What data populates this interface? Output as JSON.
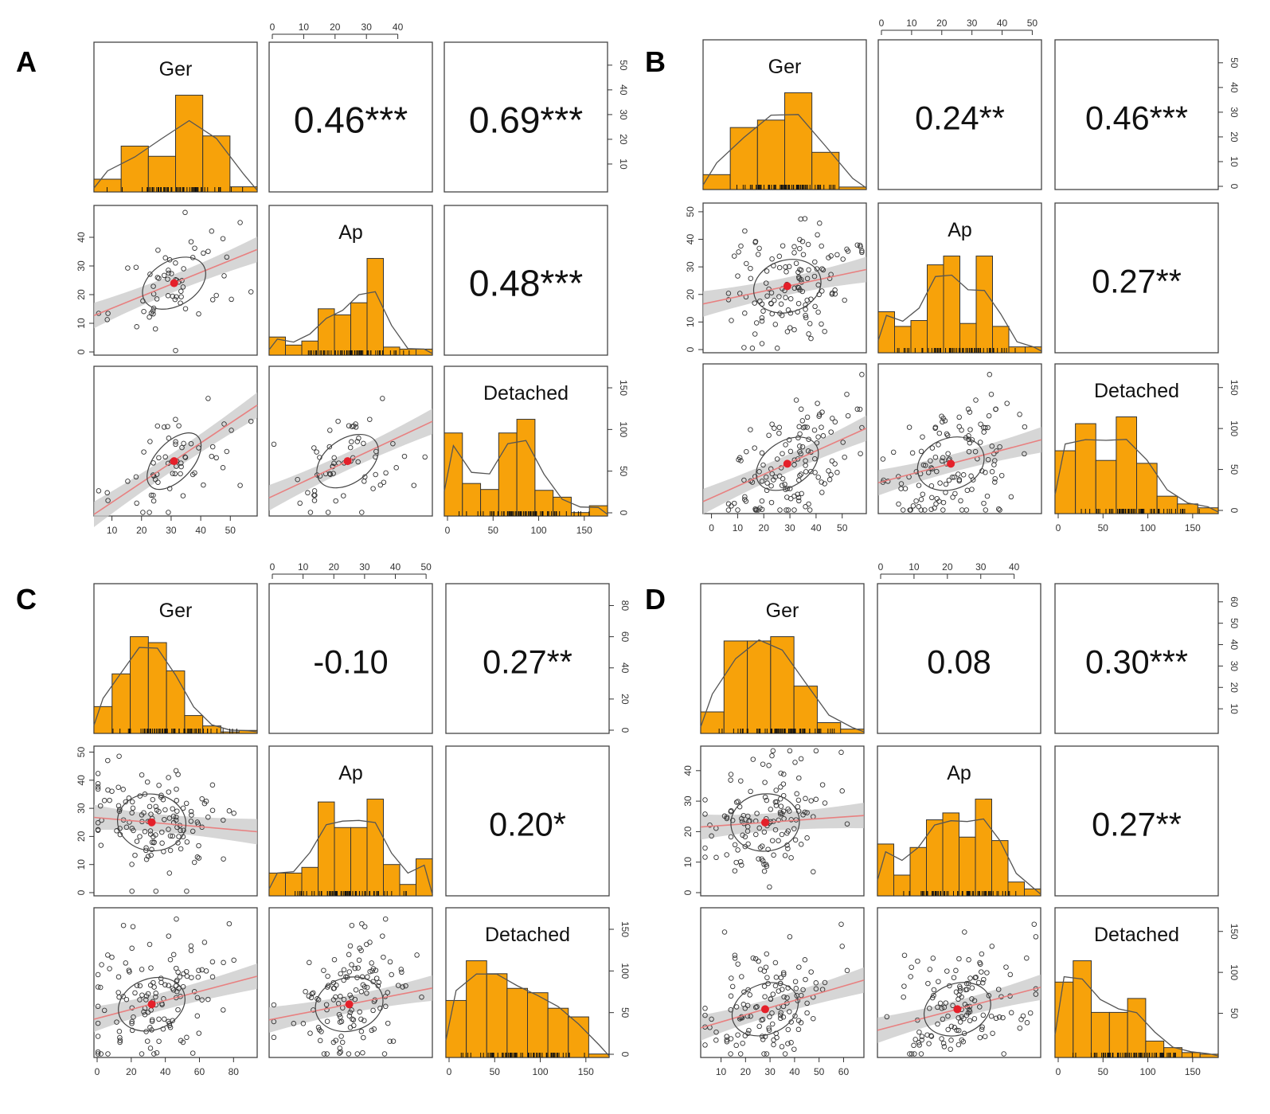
{
  "chart_data": [
    {
      "type": "scatter-matrix",
      "panel_label": "A",
      "variables": [
        "Ger",
        "Ap",
        "Detached"
      ],
      "ranges": {
        "Ger": [
          5,
          58
        ],
        "Ap": [
          0,
          50
        ],
        "Detached": [
          0,
          172
        ]
      },
      "top_axis": {
        "ticks": [
          "0",
          "10",
          "20",
          "30",
          "40"
        ],
        "values": [
          0,
          10,
          20,
          30,
          40
        ]
      },
      "bottom_axis": [
        {
          "ticks": [
            "10",
            "20",
            "30",
            "40",
            "50"
          ],
          "values": [
            10,
            20,
            30,
            40,
            50
          ]
        },
        {
          "ticks": [],
          "values": []
        },
        {
          "ticks": [
            "0",
            "50",
            "100",
            "150"
          ],
          "values": [
            0,
            50,
            100,
            150
          ]
        }
      ],
      "left_axis": {
        "ticks": [
          "0",
          "10",
          "20",
          "30",
          "40"
        ],
        "values": [
          0,
          10,
          20,
          30,
          40
        ]
      },
      "right_axis_top": {
        "ticks": [
          "10",
          "20",
          "30",
          "40",
          "50"
        ],
        "values": [
          10,
          20,
          30,
          40,
          50
        ],
        "max": 58
      },
      "right_axis_bottom": {
        "ticks": [
          "0",
          "50",
          "100",
          "150"
        ],
        "values": [
          0,
          50,
          100,
          150
        ]
      },
      "correlations": {
        "Ger-Ap": "0.46***",
        "Ger-Detached": "0.69***",
        "Ap-Detached": "0.48***"
      },
      "correlation_values": {
        "Ger-Ap": 0.46,
        "Ger-Detached": 0.69,
        "Ap-Detached": 0.48
      },
      "histograms": {
        "Ger": [
          5,
          18,
          14,
          38,
          22,
          2
        ],
        "Ap": [
          9,
          5,
          7,
          23,
          20,
          26,
          48,
          4,
          3,
          3
        ],
        "Detached": [
          97,
          38,
          31,
          97,
          113,
          30,
          22,
          4,
          12
        ]
      },
      "means": {
        "Ger": 31,
        "Ap": 24,
        "Detached": 62
      },
      "n": 60
    },
    {
      "type": "scatter-matrix",
      "panel_label": "B",
      "variables": [
        "Ger",
        "Ap",
        "Detached"
      ],
      "ranges": {
        "Ger": [
          -2,
          58
        ],
        "Ap": [
          0,
          52
        ],
        "Detached": [
          0,
          175
        ]
      },
      "top_axis": {
        "ticks": [
          "0",
          "10",
          "20",
          "30",
          "40",
          "50"
        ],
        "values": [
          0,
          10,
          20,
          30,
          40,
          50
        ]
      },
      "bottom_axis": [
        {
          "ticks": [
            "0",
            "10",
            "20",
            "30",
            "40",
            "50"
          ],
          "values": [
            0,
            10,
            20,
            30,
            40,
            50
          ]
        },
        {
          "ticks": [],
          "values": []
        },
        {
          "ticks": [
            "0",
            "50",
            "100",
            "150"
          ],
          "values": [
            0,
            50,
            100,
            150
          ]
        }
      ],
      "left_axis": {
        "ticks": [
          "0",
          "10",
          "20",
          "30",
          "40",
          "50"
        ],
        "values": [
          0,
          10,
          20,
          30,
          40,
          50
        ]
      },
      "right_axis_top": {
        "ticks": [
          "0",
          "10",
          "20",
          "30",
          "40",
          "50"
        ],
        "values": [
          0,
          10,
          20,
          30,
          40,
          50
        ],
        "max": 58
      },
      "right_axis_bottom": {
        "ticks": [
          "0",
          "50",
          "100",
          "150"
        ],
        "values": [
          0,
          50,
          100,
          150
        ]
      },
      "correlations": {
        "Ger-Ap": "0.24**",
        "Ger-Detached": "0.46***",
        "Ap-Detached": "0.27**"
      },
      "correlation_values": {
        "Ger-Ap": 0.24,
        "Ger-Detached": 0.46,
        "Ap-Detached": 0.27
      },
      "histograms": {
        "Ger": [
          6,
          25,
          28,
          39,
          15,
          1
        ],
        "Ap": [
          14,
          9,
          11,
          30,
          33,
          10,
          33,
          9,
          2,
          2
        ],
        "Detached": [
          65,
          93,
          55,
          100,
          52,
          18,
          10,
          6
        ]
      },
      "means": {
        "Ger": 29,
        "Ap": 23,
        "Detached": 57
      },
      "n": 130
    },
    {
      "type": "scatter-matrix",
      "panel_label": "C",
      "variables": [
        "Ger",
        "Ap",
        "Detached"
      ],
      "ranges": {
        "Ger": [
          0,
          92
        ],
        "Ap": [
          0,
          51
        ],
        "Detached": [
          0,
          172
        ]
      },
      "top_axis": {
        "ticks": [
          "0",
          "10",
          "20",
          "30",
          "40",
          "50"
        ],
        "values": [
          0,
          10,
          20,
          30,
          40,
          50
        ]
      },
      "bottom_axis": [
        {
          "ticks": [
            "0",
            "20",
            "40",
            "60",
            "80"
          ],
          "values": [
            0,
            20,
            40,
            60,
            80
          ]
        },
        {
          "ticks": [],
          "values": []
        },
        {
          "ticks": [
            "0",
            "50",
            "100",
            "150"
          ],
          "values": [
            0,
            50,
            100,
            150
          ]
        }
      ],
      "left_axis": {
        "ticks": [
          "0",
          "10",
          "20",
          "30",
          "40",
          "50"
        ],
        "values": [
          0,
          10,
          20,
          30,
          40,
          50
        ]
      },
      "right_axis_top": {
        "ticks": [
          "0",
          "20",
          "40",
          "60",
          "80"
        ],
        "values": [
          0,
          20,
          40,
          60,
          80
        ],
        "max": 92
      },
      "right_axis_bottom": {
        "ticks": [
          "0",
          "50",
          "100",
          "150"
        ],
        "values": [
          0,
          50,
          100,
          150
        ]
      },
      "correlations": {
        "Ger-Ap": "-0.10",
        "Ger-Detached": "0.27**",
        "Ap-Detached": "0.20*"
      },
      "correlation_values": {
        "Ger-Ap": -0.1,
        "Ger-Detached": 0.27,
        "Ap-Detached": 0.2
      },
      "histograms": {
        "Ger": [
          18,
          40,
          65,
          61,
          42,
          12,
          5,
          1,
          2
        ],
        "Ap": [
          8,
          8,
          10,
          33,
          24,
          24,
          34,
          11,
          4,
          13
        ],
        "Detached": [
          66,
          112,
          97,
          80,
          75,
          57,
          47,
          4
        ]
      },
      "means": {
        "Ger": 32,
        "Ap": 25,
        "Detached": 60
      },
      "n": 130
    },
    {
      "type": "scatter-matrix",
      "panel_label": "D",
      "variables": [
        "Ger",
        "Ap",
        "Detached"
      ],
      "ranges": {
        "Ger": [
          3,
          67
        ],
        "Ap": [
          0,
          47
        ],
        "Detached": [
          0,
          175
        ]
      },
      "top_axis": {
        "ticks": [
          "0",
          "10",
          "20",
          "30",
          "40"
        ],
        "values": [
          0,
          10,
          20,
          30,
          40
        ]
      },
      "bottom_axis": [
        {
          "ticks": [
            "10",
            "20",
            "30",
            "40",
            "50",
            "60"
          ],
          "values": [
            10,
            20,
            30,
            40,
            50,
            60
          ]
        },
        {
          "ticks": [],
          "values": []
        },
        {
          "ticks": [
            "0",
            "50",
            "100",
            "150"
          ],
          "values": [
            0,
            50,
            100,
            150
          ]
        }
      ],
      "left_axis": {
        "ticks": [
          "0",
          "10",
          "20",
          "30",
          "40"
        ],
        "values": [
          0,
          10,
          20,
          30,
          40
        ]
      },
      "right_axis_top": {
        "ticks": [
          "10",
          "20",
          "30",
          "40",
          "50",
          "60"
        ],
        "values": [
          10,
          20,
          30,
          40,
          50,
          60
        ],
        "max": 67
      },
      "right_axis_bottom": {
        "ticks": [
          "50",
          "100",
          "150"
        ],
        "values": [
          50,
          100,
          150
        ]
      },
      "correlations": {
        "Ger-Ap": "0.08",
        "Ger-Detached": "0.30***",
        "Ap-Detached": "0.27**"
      },
      "correlation_values": {
        "Ger-Ap": 0.08,
        "Ger-Detached": 0.3,
        "Ap-Detached": 0.27
      },
      "histograms": {
        "Ger": [
          10,
          43,
          43,
          45,
          22,
          5,
          2
        ],
        "Ap": [
          15,
          6,
          14,
          22,
          24,
          17,
          28,
          16,
          4,
          2
        ],
        "Detached": [
          92,
          118,
          55,
          55,
          72,
          20,
          12,
          6,
          4
        ]
      },
      "means": {
        "Ger": 28,
        "Ap": 23,
        "Detached": 55
      },
      "n": 130
    }
  ]
}
